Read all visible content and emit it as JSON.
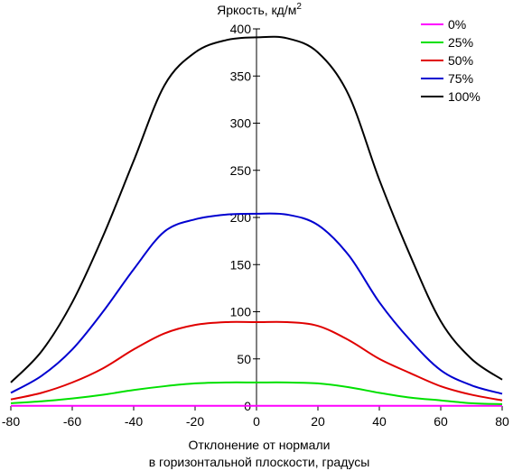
{
  "chart_data": {
    "type": "line",
    "title": "",
    "ylabel": "Яркость, кд/м",
    "ylabel_sup": "2",
    "xlabel_line1": "Отклонение от нормали",
    "xlabel_line2": "в горизонтальной плоскости, градусы",
    "xlim": [
      -80,
      80
    ],
    "ylim": [
      0,
      400
    ],
    "xticks": [
      -80,
      -60,
      -40,
      -20,
      0,
      20,
      40,
      60,
      80
    ],
    "yticks": [
      0,
      50,
      100,
      150,
      200,
      250,
      300,
      350,
      400
    ],
    "grid": false,
    "legend_position": "top-right",
    "x": [
      -80,
      -70,
      -60,
      -50,
      -40,
      -30,
      -20,
      -10,
      0,
      10,
      20,
      30,
      40,
      50,
      60,
      70,
      80
    ],
    "series": [
      {
        "name": "0%",
        "color": "#ff00ff",
        "values": [
          0.3,
          0.3,
          0.3,
          0.3,
          0.3,
          0.3,
          0.3,
          0.3,
          0.3,
          0.3,
          0.3,
          0.3,
          0.3,
          0.3,
          0.3,
          0.3,
          0.3
        ]
      },
      {
        "name": "25%",
        "color": "#00e000",
        "values": [
          3,
          5,
          8,
          12,
          17,
          21,
          24,
          25,
          25,
          25,
          24,
          20,
          14,
          9,
          6,
          3,
          2
        ]
      },
      {
        "name": "50%",
        "color": "#e00000",
        "values": [
          7,
          14,
          25,
          40,
          60,
          77,
          86,
          89,
          89,
          89,
          85,
          70,
          50,
          35,
          21,
          12,
          6
        ]
      },
      {
        "name": "75%",
        "color": "#0000d0",
        "values": [
          14,
          32,
          60,
          100,
          145,
          185,
          198,
          203,
          204,
          203,
          192,
          160,
          110,
          70,
          38,
          22,
          13
        ]
      },
      {
        "name": "100%",
        "color": "#000000",
        "values": [
          25,
          58,
          110,
          180,
          260,
          340,
          375,
          388,
          391,
          390,
          375,
          330,
          240,
          160,
          90,
          50,
          28
        ]
      }
    ]
  }
}
